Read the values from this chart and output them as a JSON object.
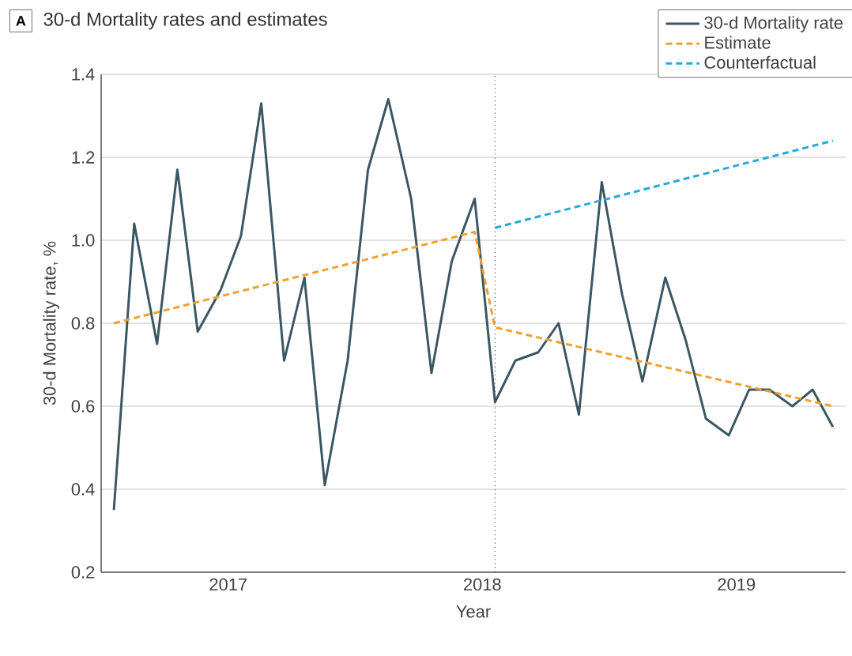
{
  "chart_data": {
    "type": "line",
    "title": "30-d Mortality rates and estimates",
    "annotations": [
      "A"
    ],
    "xlabel": "Year",
    "ylabel": "30-d Mortality rate, %",
    "xlim": [
      2016.5,
      2019.43
    ],
    "ylim": [
      0.2,
      1.4
    ],
    "xticks": [
      2017,
      2018,
      2019
    ],
    "yticks": [
      0.2,
      0.4,
      0.6,
      0.8,
      {
        "value": 1.0,
        "label": "1.0"
      },
      1.2,
      1.4
    ],
    "grid": "y",
    "legend": "top right",
    "marker": "none",
    "ref_lines": [
      {
        "axis": "x",
        "value": 2018.05,
        "color": "#555555",
        "line_style": "dotted"
      }
    ],
    "series": [
      {
        "name": "30-d Mortality rate",
        "color": "#3b5763",
        "line_style": "solid",
        "x": [
          2016.55,
          2016.63,
          2016.72,
          2016.8,
          2016.88,
          2016.97,
          2017.05,
          2017.13,
          2017.22,
          2017.3,
          2017.38,
          2017.47,
          2017.55,
          2017.63,
          2017.72,
          2017.8,
          2017.88,
          2017.97,
          2018.05,
          2018.13,
          2018.22,
          2018.3,
          2018.38,
          2018.47,
          2018.55,
          2018.63,
          2018.72,
          2018.8,
          2018.88,
          2018.97,
          2019.05,
          2019.13,
          2019.22,
          2019.3,
          2019.38
        ],
        "values": [
          0.35,
          1.04,
          0.75,
          1.17,
          0.78,
          0.88,
          1.01,
          1.33,
          0.71,
          0.91,
          0.41,
          0.71,
          1.17,
          1.34,
          1.1,
          0.68,
          0.95,
          1.1,
          0.61,
          0.71,
          0.73,
          0.8,
          0.58,
          1.14,
          0.87,
          0.66,
          0.91,
          0.76,
          0.57,
          0.53,
          0.64,
          0.64,
          0.6,
          0.64,
          0.55
        ]
      },
      {
        "name": "Estimate",
        "color": "#f0a030",
        "line_style": "dashed",
        "x": [
          2016.55,
          2017.97,
          2018.05,
          2019.38
        ],
        "values": [
          0.8,
          1.02,
          0.79,
          0.6
        ]
      },
      {
        "name": "Counterfactual",
        "color": "#29a9d8",
        "line_style": "dashed",
        "x": [
          2018.05,
          2019.38
        ],
        "values": [
          1.03,
          1.24
        ]
      }
    ]
  }
}
